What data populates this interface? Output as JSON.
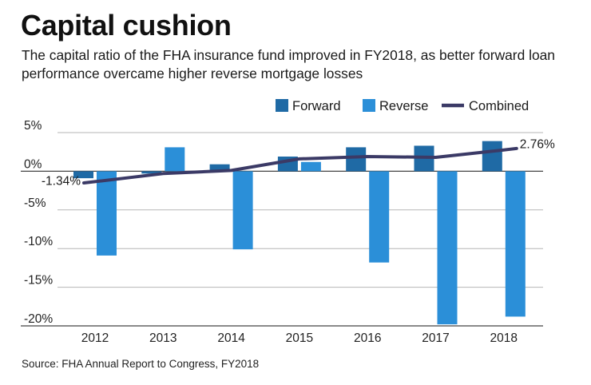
{
  "header": {
    "title": "Capital cushion",
    "subtitle": "The capital ratio of the FHA insurance fund improved in FY2018, as better forward loan performance overcame higher reverse mortgage losses"
  },
  "footer": {
    "source": "Source: FHA Annual Report to Congress, FY2018"
  },
  "colors": {
    "forward": "#1f6aa5",
    "reverse": "#2b8fd8",
    "combined": "#3b3a66",
    "grid": "#b5b5b5",
    "axis": "#444444"
  },
  "chart_data": {
    "type": "bar",
    "title": "Capital cushion",
    "xlabel": "",
    "ylabel": "",
    "categories": [
      "2012",
      "2013",
      "2014",
      "2015",
      "2016",
      "2017",
      "2018"
    ],
    "ylim": [
      -20,
      5
    ],
    "yticks": [
      5,
      0,
      -5,
      -10,
      -15,
      -20
    ],
    "ytick_labels": [
      "5%",
      "0%",
      "-5%",
      "-10%",
      "-15%",
      "-20%"
    ],
    "grid": true,
    "legend_position": "top-right",
    "series": [
      {
        "name": "Forward",
        "type": "bar",
        "values": [
          -0.9,
          -0.3,
          0.9,
          1.9,
          3.1,
          3.3,
          3.9
        ]
      },
      {
        "name": "Reverse",
        "type": "bar",
        "values": [
          -10.9,
          3.1,
          -10.1,
          1.2,
          -11.8,
          -19.8,
          -18.8
        ]
      },
      {
        "name": "Combined",
        "type": "line",
        "values": [
          -1.34,
          -0.3,
          0.1,
          1.6,
          1.9,
          1.8,
          2.76
        ]
      }
    ],
    "annotations": [
      {
        "series": "Combined",
        "index": 0,
        "text": "-1.34%"
      },
      {
        "series": "Combined",
        "index": 6,
        "text": "2.76%"
      }
    ]
  }
}
